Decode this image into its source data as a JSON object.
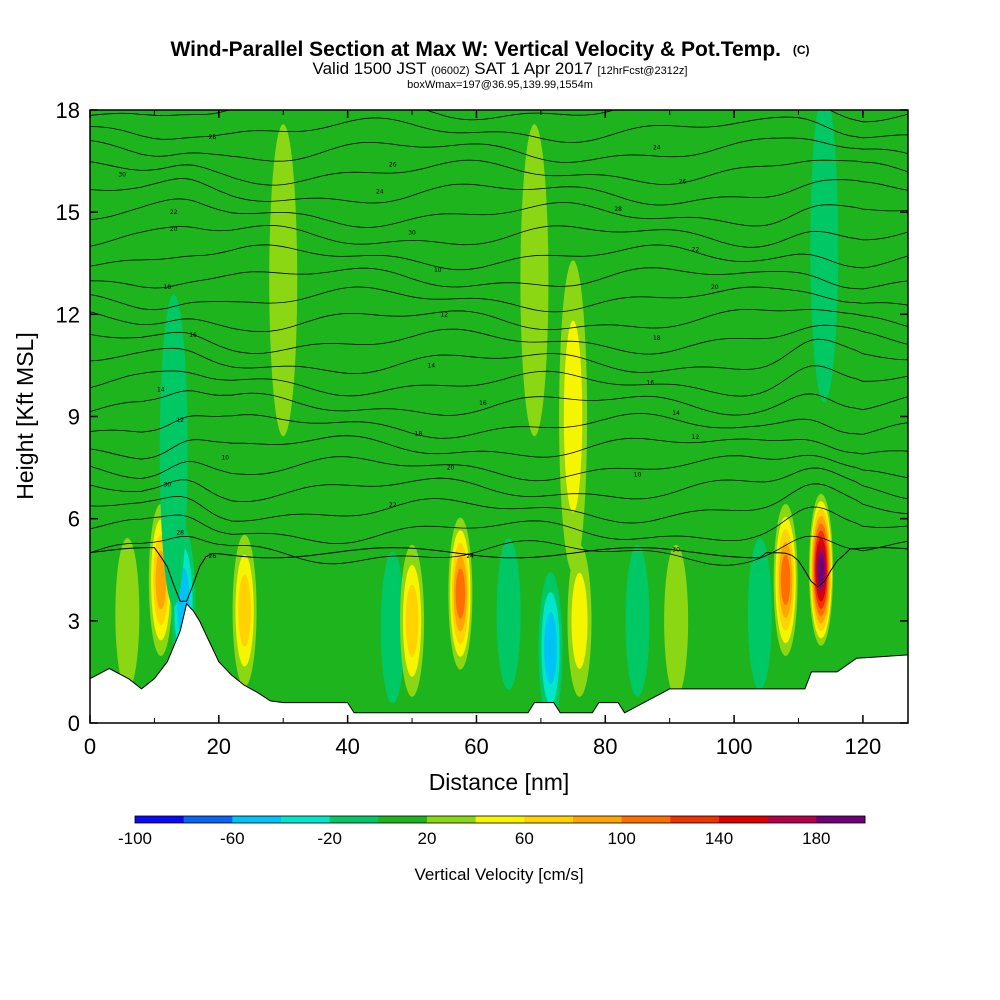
{
  "header": {
    "title_main": "Wind-Parallel Section at Max W: Vertical Velocity & Pot.Temp.",
    "title_mark": "(C)",
    "subtitle_a": "Valid 1500 JST",
    "subtitle_b": "(0600Z)",
    "subtitle_c": "SAT 1 Apr 2017",
    "subtitle_d": "[12hrFcst@2312z]",
    "subtitle_2": "boxWmax=197@36.95,139.99,1554m"
  },
  "chart_data": {
    "type": "heatmap",
    "title": "Wind-Parallel Section at Max W: Vertical Velocity & Pot.Temp.",
    "xlabel": "Distance [nm]",
    "ylabel": "Height [Kft MSL]",
    "xlim": [
      0,
      127
    ],
    "ylim": [
      0,
      18
    ],
    "xticks": [
      0,
      20,
      40,
      60,
      80,
      100,
      120
    ],
    "yticks": [
      0,
      3,
      6,
      9,
      12,
      15,
      18
    ],
    "grid": false,
    "colorbar": {
      "title": "Vertical Velocity [cm/s]",
      "placement": "bottom",
      "bounds": [
        -100,
        -80,
        -60,
        -40,
        -20,
        0,
        20,
        40,
        60,
        80,
        100,
        120,
        140,
        160,
        180,
        200
      ],
      "labels": [
        -100,
        -60,
        -20,
        20,
        60,
        100,
        140,
        180
      ],
      "colors": [
        "#0a0af5",
        "#0a64f5",
        "#00c3f5",
        "#00e6c8",
        "#00c864",
        "#1eb41e",
        "#8cd714",
        "#f5f500",
        "#ffd200",
        "#ffa500",
        "#ff6e00",
        "#f03200",
        "#dc0000",
        "#b40046",
        "#6e0078"
      ]
    },
    "background_w": 10,
    "w_features": [
      {
        "x": 11,
        "y": 4.2,
        "w": 90,
        "note": "updraft"
      },
      {
        "x": 14.5,
        "y": 3.5,
        "w": -60,
        "note": "downdraft"
      },
      {
        "x": 24,
        "y": 3.3,
        "w": 70
      },
      {
        "x": 5.8,
        "y": 3.2,
        "w": 30
      },
      {
        "x": 47,
        "y": 2.8,
        "w": -20
      },
      {
        "x": 50,
        "y": 3.0,
        "w": 60
      },
      {
        "x": 57.5,
        "y": 3.8,
        "w": 110,
        "note": "strong updraft"
      },
      {
        "x": 65,
        "y": 3.2,
        "w": -20
      },
      {
        "x": 71.5,
        "y": 2.2,
        "w": -60
      },
      {
        "x": 76,
        "y": 3.0,
        "w": 45
      },
      {
        "x": 85,
        "y": 3.0,
        "w": -30
      },
      {
        "x": 91,
        "y": 3.0,
        "w": 30
      },
      {
        "x": 104,
        "y": 3.2,
        "w": -20
      },
      {
        "x": 108,
        "y": 4.2,
        "w": 100
      },
      {
        "x": 113.5,
        "y": 4.5,
        "w": 197,
        "note": "max W"
      },
      {
        "x": 30,
        "y": 13,
        "w": 30
      },
      {
        "x": 69,
        "y": 13,
        "w": 30
      },
      {
        "x": 75,
        "y": 9,
        "w": 45
      },
      {
        "x": 114,
        "y": 14,
        "w": -20
      },
      {
        "x": 13,
        "y": 8,
        "w": -20
      }
    ],
    "terrain_kft": [
      [
        0,
        1.3
      ],
      [
        3,
        1.6
      ],
      [
        6,
        1.3
      ],
      [
        8,
        1.0
      ],
      [
        10,
        1.3
      ],
      [
        12,
        1.8
      ],
      [
        14,
        2.7
      ],
      [
        15,
        3.5
      ],
      [
        16,
        3.3
      ],
      [
        17,
        3.0
      ],
      [
        18,
        2.6
      ],
      [
        19,
        2.2
      ],
      [
        20,
        1.8
      ],
      [
        22,
        1.4
      ],
      [
        24,
        1.1
      ],
      [
        26,
        0.9
      ],
      [
        28,
        0.65
      ],
      [
        30,
        0.6
      ],
      [
        40,
        0.6
      ],
      [
        41,
        0.3
      ],
      [
        68,
        0.3
      ],
      [
        69,
        0.6
      ],
      [
        72,
        0.6
      ],
      [
        73,
        0.3
      ],
      [
        78,
        0.3
      ],
      [
        79,
        0.6
      ],
      [
        82,
        0.6
      ],
      [
        83,
        0.3
      ],
      [
        90,
        1.0
      ],
      [
        100,
        1.0
      ],
      [
        111,
        1.0
      ],
      [
        112,
        1.5
      ],
      [
        116,
        1.5
      ],
      [
        119,
        1.9
      ],
      [
        127,
        2.0
      ]
    ],
    "theta_contours": {
      "levels": [
        8,
        10,
        12,
        14,
        16,
        18,
        20,
        22,
        24,
        26,
        28,
        30,
        32,
        34
      ],
      "labels_printed": [
        "30",
        "28",
        "26",
        "24",
        "22",
        "20",
        "18",
        "16",
        "14",
        "12",
        "10"
      ]
    }
  }
}
